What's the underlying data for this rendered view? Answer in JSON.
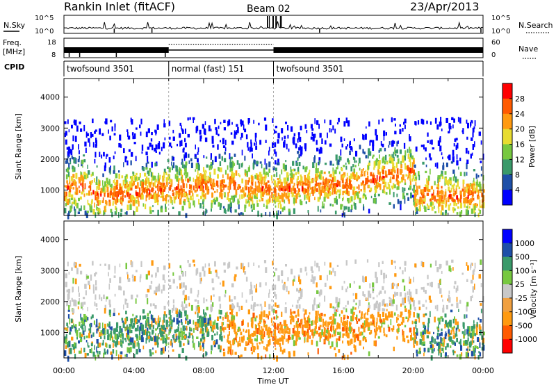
{
  "header": {
    "station": "Rankin Inlet (fitACF)",
    "beam": "Beam 02",
    "date": "23/Apr/2013"
  },
  "noise_panel": {
    "left_label": "N.Sky",
    "right_label": "N.Search",
    "ticks": [
      "10^5",
      "10^0"
    ]
  },
  "freq_panel": {
    "left_label_1": "Freq.",
    "left_label_2": "[MHz]",
    "left_ticks": [
      "18",
      "8"
    ],
    "right_label": "Nave",
    "right_ticks": [
      "60",
      "0"
    ]
  },
  "cpid_panel": {
    "label": "CPID",
    "segments": [
      {
        "name": "twofsound 3501",
        "start_h": 0,
        "end_h": 6
      },
      {
        "name": "normal (fast) 151",
        "start_h": 6,
        "end_h": 12
      },
      {
        "name": "twofsound 3501",
        "start_h": 12,
        "end_h": 24
      }
    ]
  },
  "colors": {
    "power_scale": [
      "#0000ff",
      "#1e4fa8",
      "#3a9a6a",
      "#77c840",
      "#e8dc30",
      "#ff9a10",
      "#ff5a00",
      "#ff0000"
    ],
    "velocity_scale": [
      "#ff0000",
      "#ff5a00",
      "#ff9a10",
      "#f0a040",
      "#c8c8c8",
      "#77c840",
      "#3a9a6a",
      "#1e4fa8",
      "#0000ff"
    ]
  },
  "chart_data": [
    {
      "type": "heatmap",
      "panel": "power",
      "xlabel": "Time UT",
      "ylabel": "Slant Range [km]",
      "x_ticks": [
        "00:00",
        "04:00",
        "08:00",
        "12:00",
        "16:00",
        "20:00",
        "00:00"
      ],
      "y_ticks": [
        "1000",
        "2000",
        "3000",
        "4000"
      ],
      "xlim": [
        0,
        24
      ],
      "ylim": [
        180,
        4600
      ],
      "colorbar_label": "Power [dB]",
      "colorbar_ticks": [
        "28",
        "24",
        "20",
        "16",
        "12",
        "8",
        "4"
      ],
      "colorbar_range": [
        0,
        32
      ],
      "grid": false
    },
    {
      "type": "heatmap",
      "panel": "velocity",
      "xlabel": "Time UT",
      "ylabel": "Slant Range [km]",
      "x_ticks": [
        "00:00",
        "04:00",
        "08:00",
        "12:00",
        "16:00",
        "20:00",
        "00:00"
      ],
      "y_ticks": [
        "1000",
        "2000",
        "3000",
        "4000"
      ],
      "xlim": [
        0,
        24
      ],
      "ylim": [
        180,
        4600
      ],
      "colorbar_label": "Velocity [m s⁻¹]",
      "colorbar_ticks": [
        "1000",
        "500",
        "100",
        "25",
        "-25",
        "-100",
        "-500",
        "-1000"
      ],
      "grid": false
    }
  ]
}
